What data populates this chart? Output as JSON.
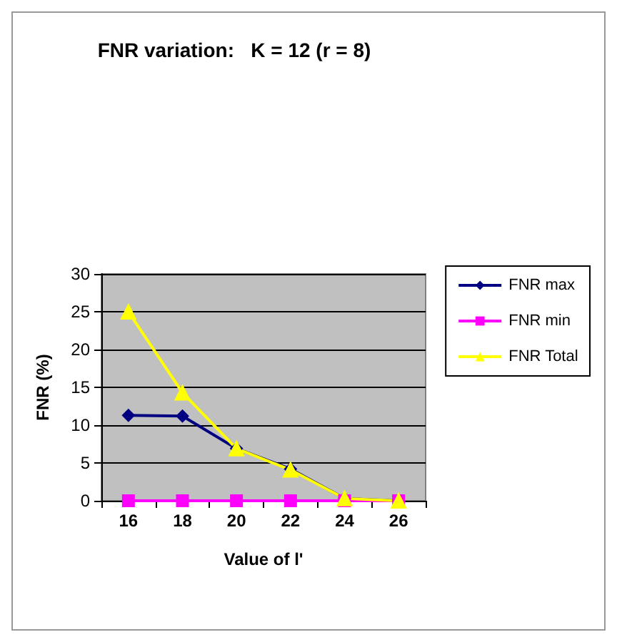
{
  "chart_data": {
    "type": "line",
    "title": "FNR variation:   K = 12 (r = 8)",
    "xlabel": "Value of l'",
    "ylabel": "FNR (%)",
    "categories": [
      "16",
      "18",
      "20",
      "22",
      "24",
      "26"
    ],
    "series": [
      {
        "name": "FNR max",
        "color": "#000080",
        "marker": "diamond",
        "values": [
          11.3,
          11.2,
          6.9,
          4.2,
          0.3,
          0
        ]
      },
      {
        "name": "FNR min",
        "color": "#ff00ff",
        "marker": "square",
        "values": [
          0,
          0,
          0,
          0,
          0,
          0
        ]
      },
      {
        "name": "FNR Total",
        "color": "#ffff00",
        "marker": "triangle",
        "values": [
          25,
          14.3,
          6.9,
          4.1,
          0.3,
          0
        ]
      }
    ],
    "ylim": [
      0,
      30
    ],
    "yticks": [
      0,
      5,
      10,
      15,
      20,
      25,
      30
    ],
    "grid": "y",
    "legend": "right",
    "line_style": "solid"
  }
}
